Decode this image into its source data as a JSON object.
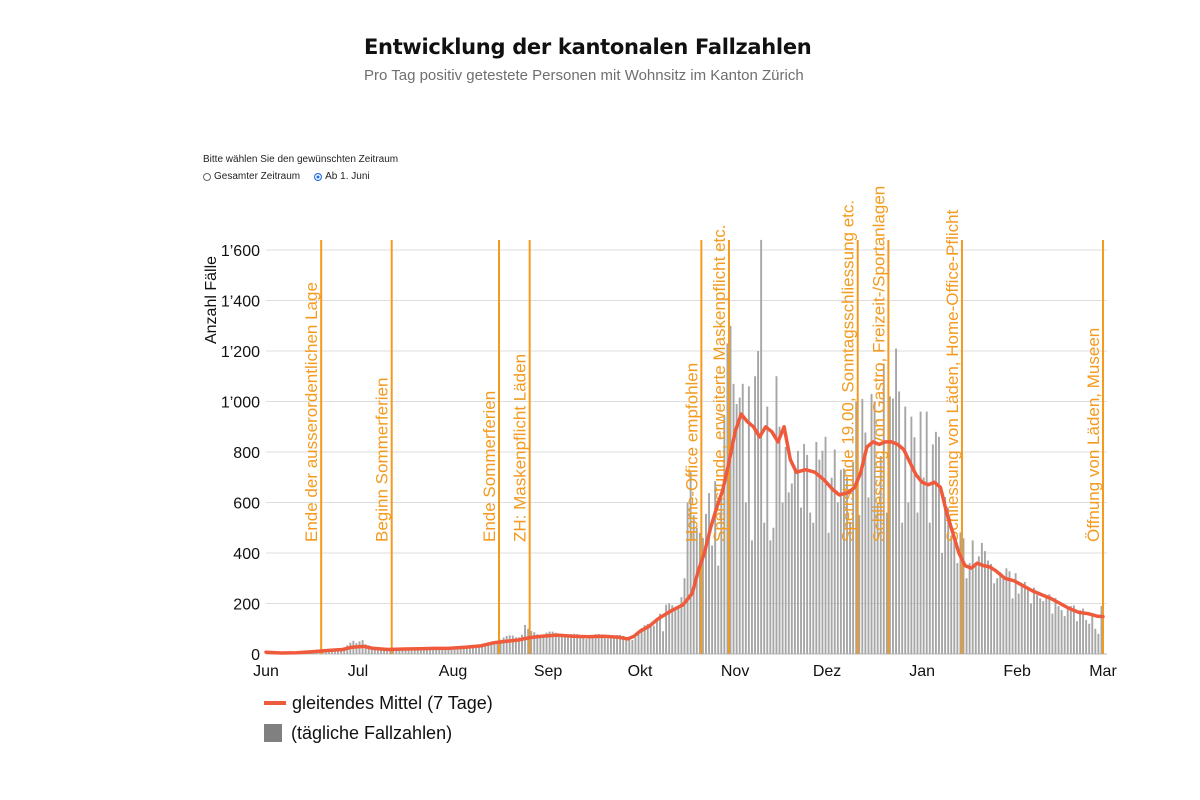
{
  "title": "Entwicklung der kantonalen Fallzahlen",
  "subtitle": "Pro Tag positiv getestete Personen mit Wohnsitz im Kanton Zürich",
  "selector": {
    "prompt": "Bitte wählen Sie den gewünschten Zeitraum",
    "options": [
      {
        "label": "Gesamter Zeitraum",
        "checked": false
      },
      {
        "label": "Ab 1. Juni",
        "checked": true
      }
    ]
  },
  "legend": {
    "line_label": "gleitendes Mittel (7 Tage)",
    "bar_label": "(tägliche Fallzahlen)"
  },
  "colors": {
    "line": "#f05a3c",
    "bars": "#a6a6a6",
    "annotation": "#f39a1f",
    "grid": "#dddddd"
  },
  "chart_data": {
    "type": "bar",
    "title": "Entwicklung der kantonalen Fallzahlen",
    "ylabel": "Anzahl Fälle",
    "xlabel": "",
    "ylim": [
      0,
      1600
    ],
    "yticks": [
      0,
      200,
      400,
      600,
      800,
      1000,
      1200,
      1400,
      1600
    ],
    "ytick_labels": [
      "0",
      "200",
      "400",
      "600",
      "800",
      "1’000",
      "1’200",
      "1’400",
      "1’600"
    ],
    "x_start": "2020-06-01",
    "x_end": "2021-03-01",
    "x_days": 273,
    "month_ticks": [
      {
        "label": "Jun",
        "day": 0
      },
      {
        "label": "Jul",
        "day": 30
      },
      {
        "label": "Aug",
        "day": 61
      },
      {
        "label": "Sep",
        "day": 92
      },
      {
        "label": "Okt",
        "day": 122
      },
      {
        "label": "Nov",
        "day": 153
      },
      {
        "label": "Dez",
        "day": 183
      },
      {
        "label": "Jan",
        "day": 214
      },
      {
        "label": "Feb",
        "day": 245
      },
      {
        "label": "Mar",
        "day": 273
      }
    ],
    "annotations": [
      {
        "day": 18,
        "label": "Ende der ausserordentlichen Lage"
      },
      {
        "day": 41,
        "label": "Beginn Sommerferien"
      },
      {
        "day": 76,
        "label": "Ende Sommerferien"
      },
      {
        "day": 86,
        "label": "ZH: Maskenpflicht Läden"
      },
      {
        "day": 142,
        "label": "Home-Office empfohlen"
      },
      {
        "day": 151,
        "label": "Sperrstunde, erweiterte Maskenpflicht etc."
      },
      {
        "day": 193,
        "label": "Sperrstunde 19.00, Sonntagsschliessung etc."
      },
      {
        "day": 203,
        "label": "Schliessung von Gastro, Freizeit-/Sportanlagen"
      },
      {
        "day": 227,
        "label": "Schliessung von Läden, Home-Office-Pflicht"
      },
      {
        "day": 273,
        "label": "Öffnung von Läden, Museen"
      }
    ],
    "series": [
      {
        "name": "gleitendes Mittel (7 Tage)",
        "type": "line",
        "points": [
          [
            0,
            7
          ],
          [
            5,
            4
          ],
          [
            10,
            5
          ],
          [
            15,
            9
          ],
          [
            20,
            14
          ],
          [
            25,
            18
          ],
          [
            28,
            27
          ],
          [
            32,
            30
          ],
          [
            35,
            22
          ],
          [
            40,
            18
          ],
          [
            45,
            20
          ],
          [
            50,
            21
          ],
          [
            55,
            22
          ],
          [
            60,
            23
          ],
          [
            65,
            27
          ],
          [
            70,
            32
          ],
          [
            74,
            44
          ],
          [
            78,
            50
          ],
          [
            82,
            55
          ],
          [
            86,
            65
          ],
          [
            90,
            70
          ],
          [
            95,
            75
          ],
          [
            100,
            70
          ],
          [
            105,
            68
          ],
          [
            110,
            70
          ],
          [
            115,
            66
          ],
          [
            118,
            60
          ],
          [
            120,
            70
          ],
          [
            122,
            90
          ],
          [
            125,
            110
          ],
          [
            128,
            140
          ],
          [
            132,
            170
          ],
          [
            136,
            195
          ],
          [
            139,
            240
          ],
          [
            141,
            330
          ],
          [
            143,
            400
          ],
          [
            145,
            500
          ],
          [
            147,
            580
          ],
          [
            149,
            650
          ],
          [
            151,
            760
          ],
          [
            153,
            880
          ],
          [
            155,
            950
          ],
          [
            157,
            920
          ],
          [
            159,
            900
          ],
          [
            161,
            860
          ],
          [
            163,
            900
          ],
          [
            165,
            880
          ],
          [
            167,
            840
          ],
          [
            169,
            900
          ],
          [
            171,
            770
          ],
          [
            173,
            720
          ],
          [
            176,
            730
          ],
          [
            179,
            720
          ],
          [
            182,
            690
          ],
          [
            185,
            650
          ],
          [
            187,
            630
          ],
          [
            190,
            640
          ],
          [
            192,
            660
          ],
          [
            194,
            720
          ],
          [
            196,
            820
          ],
          [
            198,
            840
          ],
          [
            200,
            830
          ],
          [
            202,
            840
          ],
          [
            204,
            840
          ],
          [
            206,
            830
          ],
          [
            208,
            810
          ],
          [
            210,
            760
          ],
          [
            212,
            710
          ],
          [
            214,
            680
          ],
          [
            216,
            670
          ],
          [
            218,
            680
          ],
          [
            220,
            660
          ],
          [
            222,
            560
          ],
          [
            224,
            480
          ],
          [
            226,
            400
          ],
          [
            228,
            350
          ],
          [
            230,
            340
          ],
          [
            232,
            360
          ],
          [
            234,
            350
          ],
          [
            236,
            345
          ],
          [
            238,
            330
          ],
          [
            241,
            300
          ],
          [
            244,
            290
          ],
          [
            247,
            270
          ],
          [
            250,
            250
          ],
          [
            253,
            235
          ],
          [
            256,
            220
          ],
          [
            259,
            200
          ],
          [
            262,
            180
          ],
          [
            265,
            165
          ],
          [
            268,
            160
          ],
          [
            271,
            150
          ],
          [
            273,
            148
          ]
        ]
      },
      {
        "name": "(tägliche Fallzahlen)",
        "type": "bar",
        "anchors": [
          [
            0,
            10
          ],
          [
            5,
            5
          ],
          [
            10,
            6
          ],
          [
            15,
            10
          ],
          [
            20,
            15
          ],
          [
            25,
            20
          ],
          [
            28,
            50
          ],
          [
            32,
            35
          ],
          [
            35,
            20
          ],
          [
            40,
            20
          ],
          [
            50,
            22
          ],
          [
            60,
            25
          ],
          [
            65,
            30
          ],
          [
            70,
            35
          ],
          [
            75,
            50
          ],
          [
            80,
            70
          ],
          [
            86,
            80
          ],
          [
            90,
            80
          ],
          [
            95,
            75
          ],
          [
            100,
            70
          ],
          [
            105,
            68
          ],
          [
            110,
            70
          ],
          [
            115,
            66
          ],
          [
            118,
            60
          ],
          [
            120,
            65
          ],
          [
            122,
            90
          ],
          [
            125,
            120
          ],
          [
            128,
            150
          ],
          [
            131,
            180
          ],
          [
            134,
            200
          ],
          [
            136,
            240
          ],
          [
            138,
            280
          ],
          [
            140,
            380
          ],
          [
            142,
            470
          ],
          [
            144,
            560
          ],
          [
            146,
            620
          ],
          [
            148,
            690
          ],
          [
            150,
            830
          ],
          [
            152,
            900
          ],
          [
            154,
            960
          ],
          [
            156,
            1000
          ],
          [
            158,
            1050
          ],
          [
            160,
            1030
          ],
          [
            162,
            1000
          ],
          [
            164,
            980
          ],
          [
            166,
            930
          ],
          [
            168,
            860
          ],
          [
            170,
            780
          ],
          [
            172,
            730
          ],
          [
            176,
            730
          ],
          [
            180,
            720
          ],
          [
            184,
            680
          ],
          [
            188,
            660
          ],
          [
            192,
            700
          ],
          [
            194,
            780
          ],
          [
            196,
            840
          ],
          [
            198,
            870
          ],
          [
            200,
            880
          ],
          [
            202,
            870
          ],
          [
            204,
            880
          ],
          [
            206,
            860
          ],
          [
            208,
            840
          ],
          [
            210,
            780
          ],
          [
            212,
            720
          ],
          [
            216,
            690
          ],
          [
            220,
            640
          ],
          [
            223,
            520
          ],
          [
            226,
            420
          ],
          [
            229,
            370
          ],
          [
            232,
            360
          ],
          [
            236,
            350
          ],
          [
            240,
            300
          ],
          [
            246,
            270
          ],
          [
            250,
            240
          ],
          [
            255,
            210
          ],
          [
            260,
            180
          ],
          [
            265,
            160
          ],
          [
            270,
            150
          ],
          [
            273,
            150
          ]
        ],
        "spikes": [
          [
            30,
            50
          ],
          [
            31,
            55
          ],
          [
            84,
            115
          ],
          [
            85,
            100
          ],
          [
            136,
            300
          ],
          [
            137,
            600
          ],
          [
            138,
            720
          ],
          [
            139,
            550
          ],
          [
            140,
            500
          ],
          [
            141,
            480
          ],
          [
            149,
            940
          ],
          [
            150,
            1230
          ],
          [
            151,
            1300
          ],
          [
            152,
            1070
          ],
          [
            153,
            990
          ],
          [
            155,
            1070
          ],
          [
            157,
            1060
          ],
          [
            159,
            1100
          ],
          [
            160,
            1200
          ],
          [
            161,
            1640
          ],
          [
            163,
            980
          ],
          [
            164,
            450
          ],
          [
            166,
            1100
          ],
          [
            167,
            900
          ],
          [
            169,
            820
          ],
          [
            177,
            560
          ],
          [
            179,
            840
          ],
          [
            182,
            860
          ],
          [
            185,
            810
          ],
          [
            187,
            730
          ],
          [
            189,
            700
          ],
          [
            191,
            760
          ],
          [
            192,
            1000
          ],
          [
            194,
            1010
          ],
          [
            197,
            1030
          ],
          [
            198,
            1000
          ],
          [
            201,
            1150
          ],
          [
            203,
            1020
          ],
          [
            205,
            1210
          ],
          [
            206,
            1040
          ],
          [
            208,
            980
          ],
          [
            210,
            940
          ],
          [
            213,
            960
          ],
          [
            215,
            960
          ],
          [
            217,
            830
          ],
          [
            218,
            880
          ],
          [
            219,
            860
          ],
          [
            222,
            580
          ],
          [
            224,
            460
          ],
          [
            230,
            450
          ],
          [
            233,
            440
          ],
          [
            235,
            370
          ],
          [
            240,
            300
          ],
          [
            244,
            320
          ],
          [
            248,
            260
          ],
          [
            252,
            220
          ],
          [
            258,
            190
          ],
          [
            262,
            190
          ],
          [
            266,
            180
          ],
          [
            270,
            100
          ],
          [
            272,
            190
          ]
        ],
        "dips": [
          [
            129,
            90
          ],
          [
            145,
            430
          ],
          [
            147,
            350
          ],
          [
            156,
            600
          ],
          [
            158,
            450
          ],
          [
            162,
            520
          ],
          [
            165,
            500
          ],
          [
            168,
            600
          ],
          [
            170,
            640
          ],
          [
            174,
            580
          ],
          [
            178,
            520
          ],
          [
            183,
            480
          ],
          [
            186,
            600
          ],
          [
            190,
            520
          ],
          [
            193,
            550
          ],
          [
            196,
            620
          ],
          [
            199,
            600
          ],
          [
            202,
            560
          ],
          [
            207,
            520
          ],
          [
            209,
            600
          ],
          [
            212,
            560
          ],
          [
            216,
            520
          ],
          [
            220,
            400
          ],
          [
            225,
            360
          ],
          [
            228,
            300
          ],
          [
            237,
            280
          ],
          [
            243,
            220
          ],
          [
            249,
            200
          ],
          [
            256,
            160
          ],
          [
            260,
            150
          ],
          [
            264,
            130
          ],
          [
            268,
            120
          ],
          [
            271,
            80
          ]
        ]
      }
    ]
  }
}
